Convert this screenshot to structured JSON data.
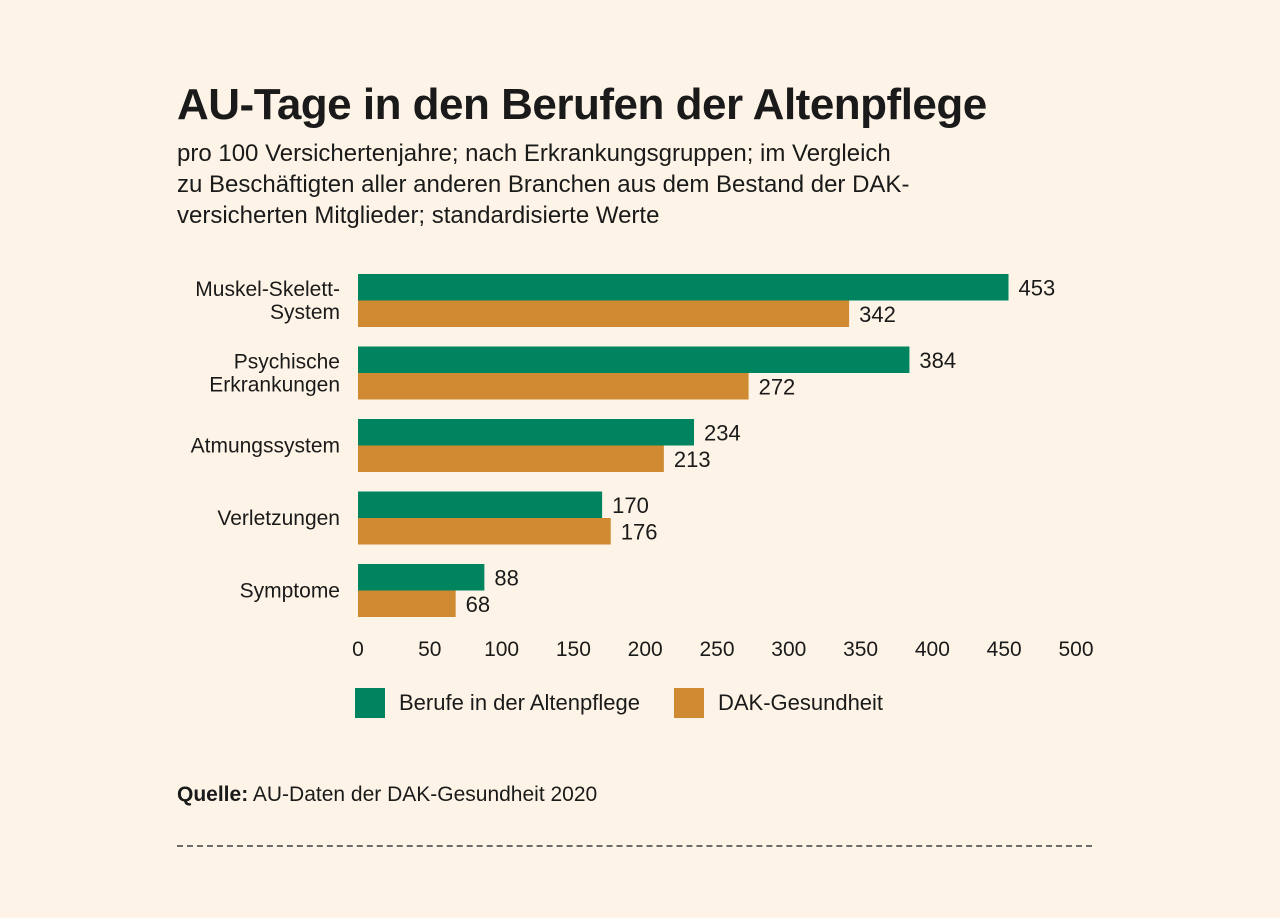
{
  "chart_data": {
    "type": "bar",
    "orientation": "horizontal",
    "title": "AU-Tage in den Berufen der Altenpflege",
    "subtitle_lines": [
      "pro 100 Versichertenjahre; nach Erkrankungsgruppen; im Vergleich",
      "zu Beschäftigten aller anderen Branchen aus dem Bestand der DAK-",
      "versicherten Mitglieder; standardisierte Werte"
    ],
    "categories": [
      [
        "Muskel-Skelett-",
        "System"
      ],
      [
        "Psychische",
        "Erkrankungen"
      ],
      [
        "Atmungssystem"
      ],
      [
        "Verletzungen"
      ],
      [
        "Symptome"
      ]
    ],
    "series": [
      {
        "name": "Berufe in der Altenpflege",
        "color": "#00845f",
        "values": [
          453,
          384,
          234,
          170,
          88
        ]
      },
      {
        "name": "DAK-Gesundheit",
        "color": "#d08a31",
        "values": [
          342,
          272,
          213,
          176,
          68
        ]
      }
    ],
    "xlim": [
      0,
      500
    ],
    "xticks": [
      0,
      50,
      100,
      150,
      200,
      250,
      300,
      350,
      400,
      450,
      500
    ],
    "grid": false,
    "legend_position": "bottom-left"
  },
  "source": {
    "label": "Quelle:",
    "text": " AU-Daten der DAK-Gesundheit 2020"
  }
}
